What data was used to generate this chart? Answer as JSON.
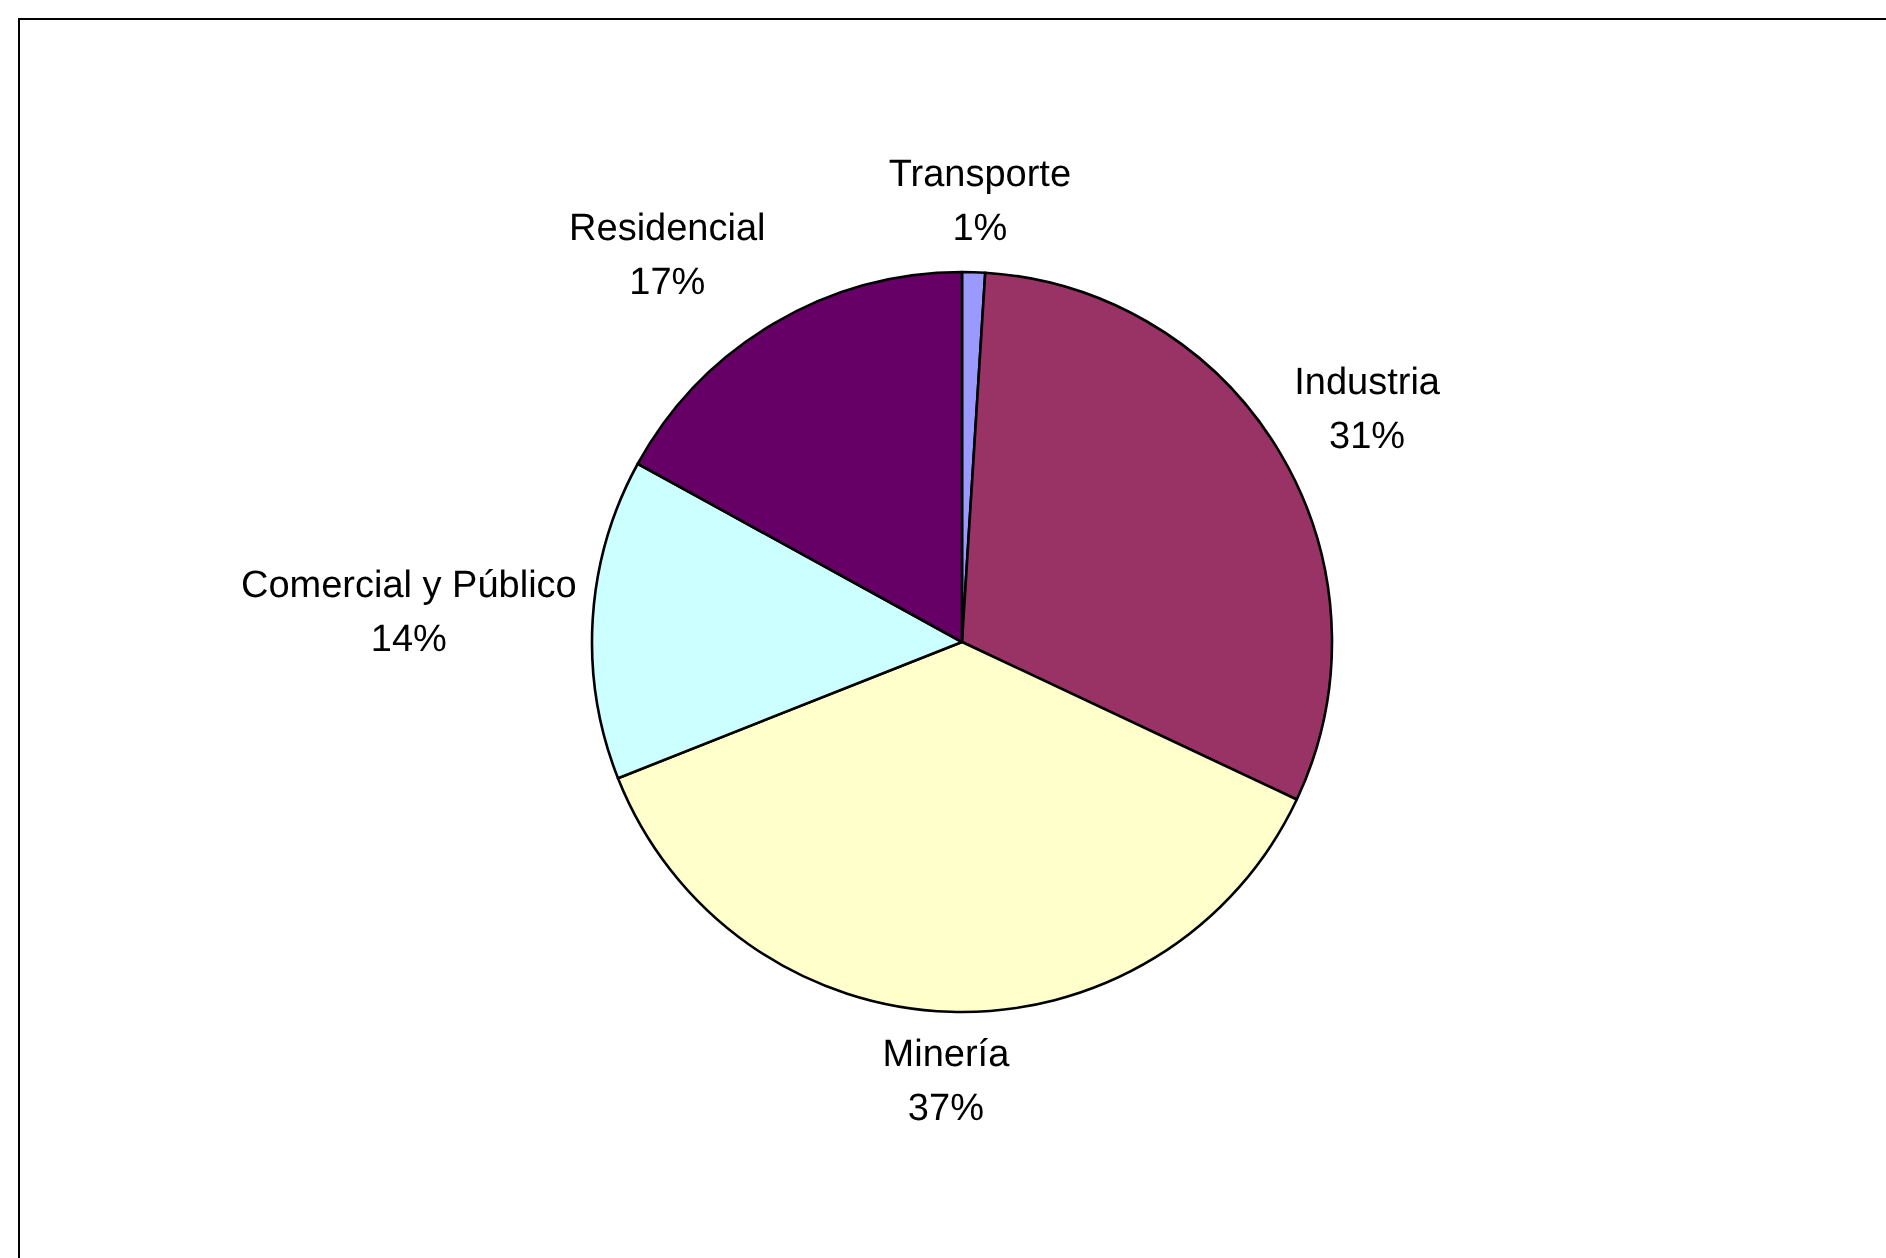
{
  "chart_data": {
    "type": "pie",
    "categories": [
      "Transporte",
      "Industria",
      "Minería",
      "Comercial y Público",
      "Residencial"
    ],
    "values": [
      1,
      31,
      37,
      14,
      17
    ],
    "colors": [
      "#9999ff",
      "#993366",
      "#ffffcc",
      "#ccffff",
      "#660066"
    ],
    "value_labels": [
      "1%",
      "31%",
      "37%",
      "14%",
      "17%"
    ],
    "legend": false
  }
}
